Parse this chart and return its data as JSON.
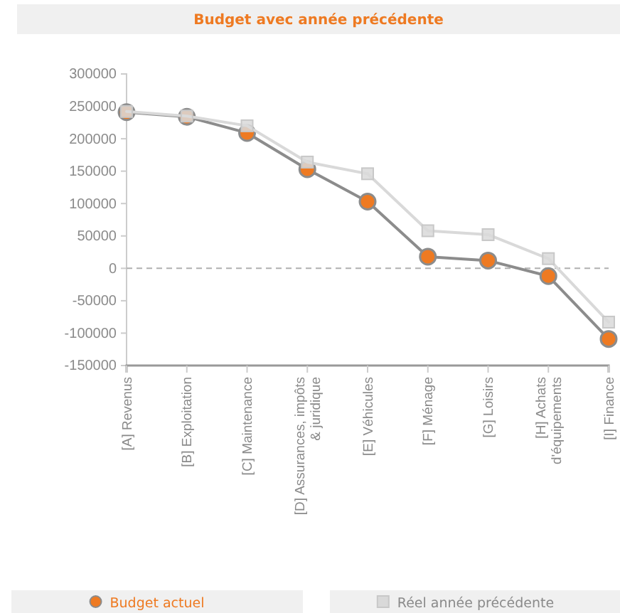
{
  "chart_data": {
    "type": "line",
    "title": "Budget avec année précédente",
    "categories": [
      "[A] Revenus",
      "[B] Exploitation",
      "[C] Maintenance",
      "[D] Assurances, impôts & juridique",
      "[E] Véhicules",
      "[F] Ménage",
      "[G] Loisirs",
      "[H] Achats d'équipements",
      "[I] Finance"
    ],
    "series": [
      {
        "name": "Budget actuel",
        "color": "#ee7a22",
        "marker": "circle",
        "values": [
          241000,
          234000,
          209000,
          153000,
          103000,
          18000,
          12000,
          -12000,
          -109000
        ]
      },
      {
        "name": "Réel année précédente",
        "color": "#d9d9d9",
        "marker": "square",
        "values": [
          242000,
          235000,
          220000,
          164000,
          146000,
          58000,
          52000,
          15000,
          -83000
        ]
      }
    ],
    "ylim": [
      -150000,
      300000
    ],
    "yticks": [
      -150000,
      -100000,
      -50000,
      0,
      50000,
      100000,
      150000,
      200000,
      250000,
      300000
    ],
    "ref_lines": [
      {
        "axis": "y",
        "value": 0,
        "line_style": "dashed",
        "color": "#b0b0b0"
      }
    ],
    "grid": false,
    "legend": "bottom"
  }
}
